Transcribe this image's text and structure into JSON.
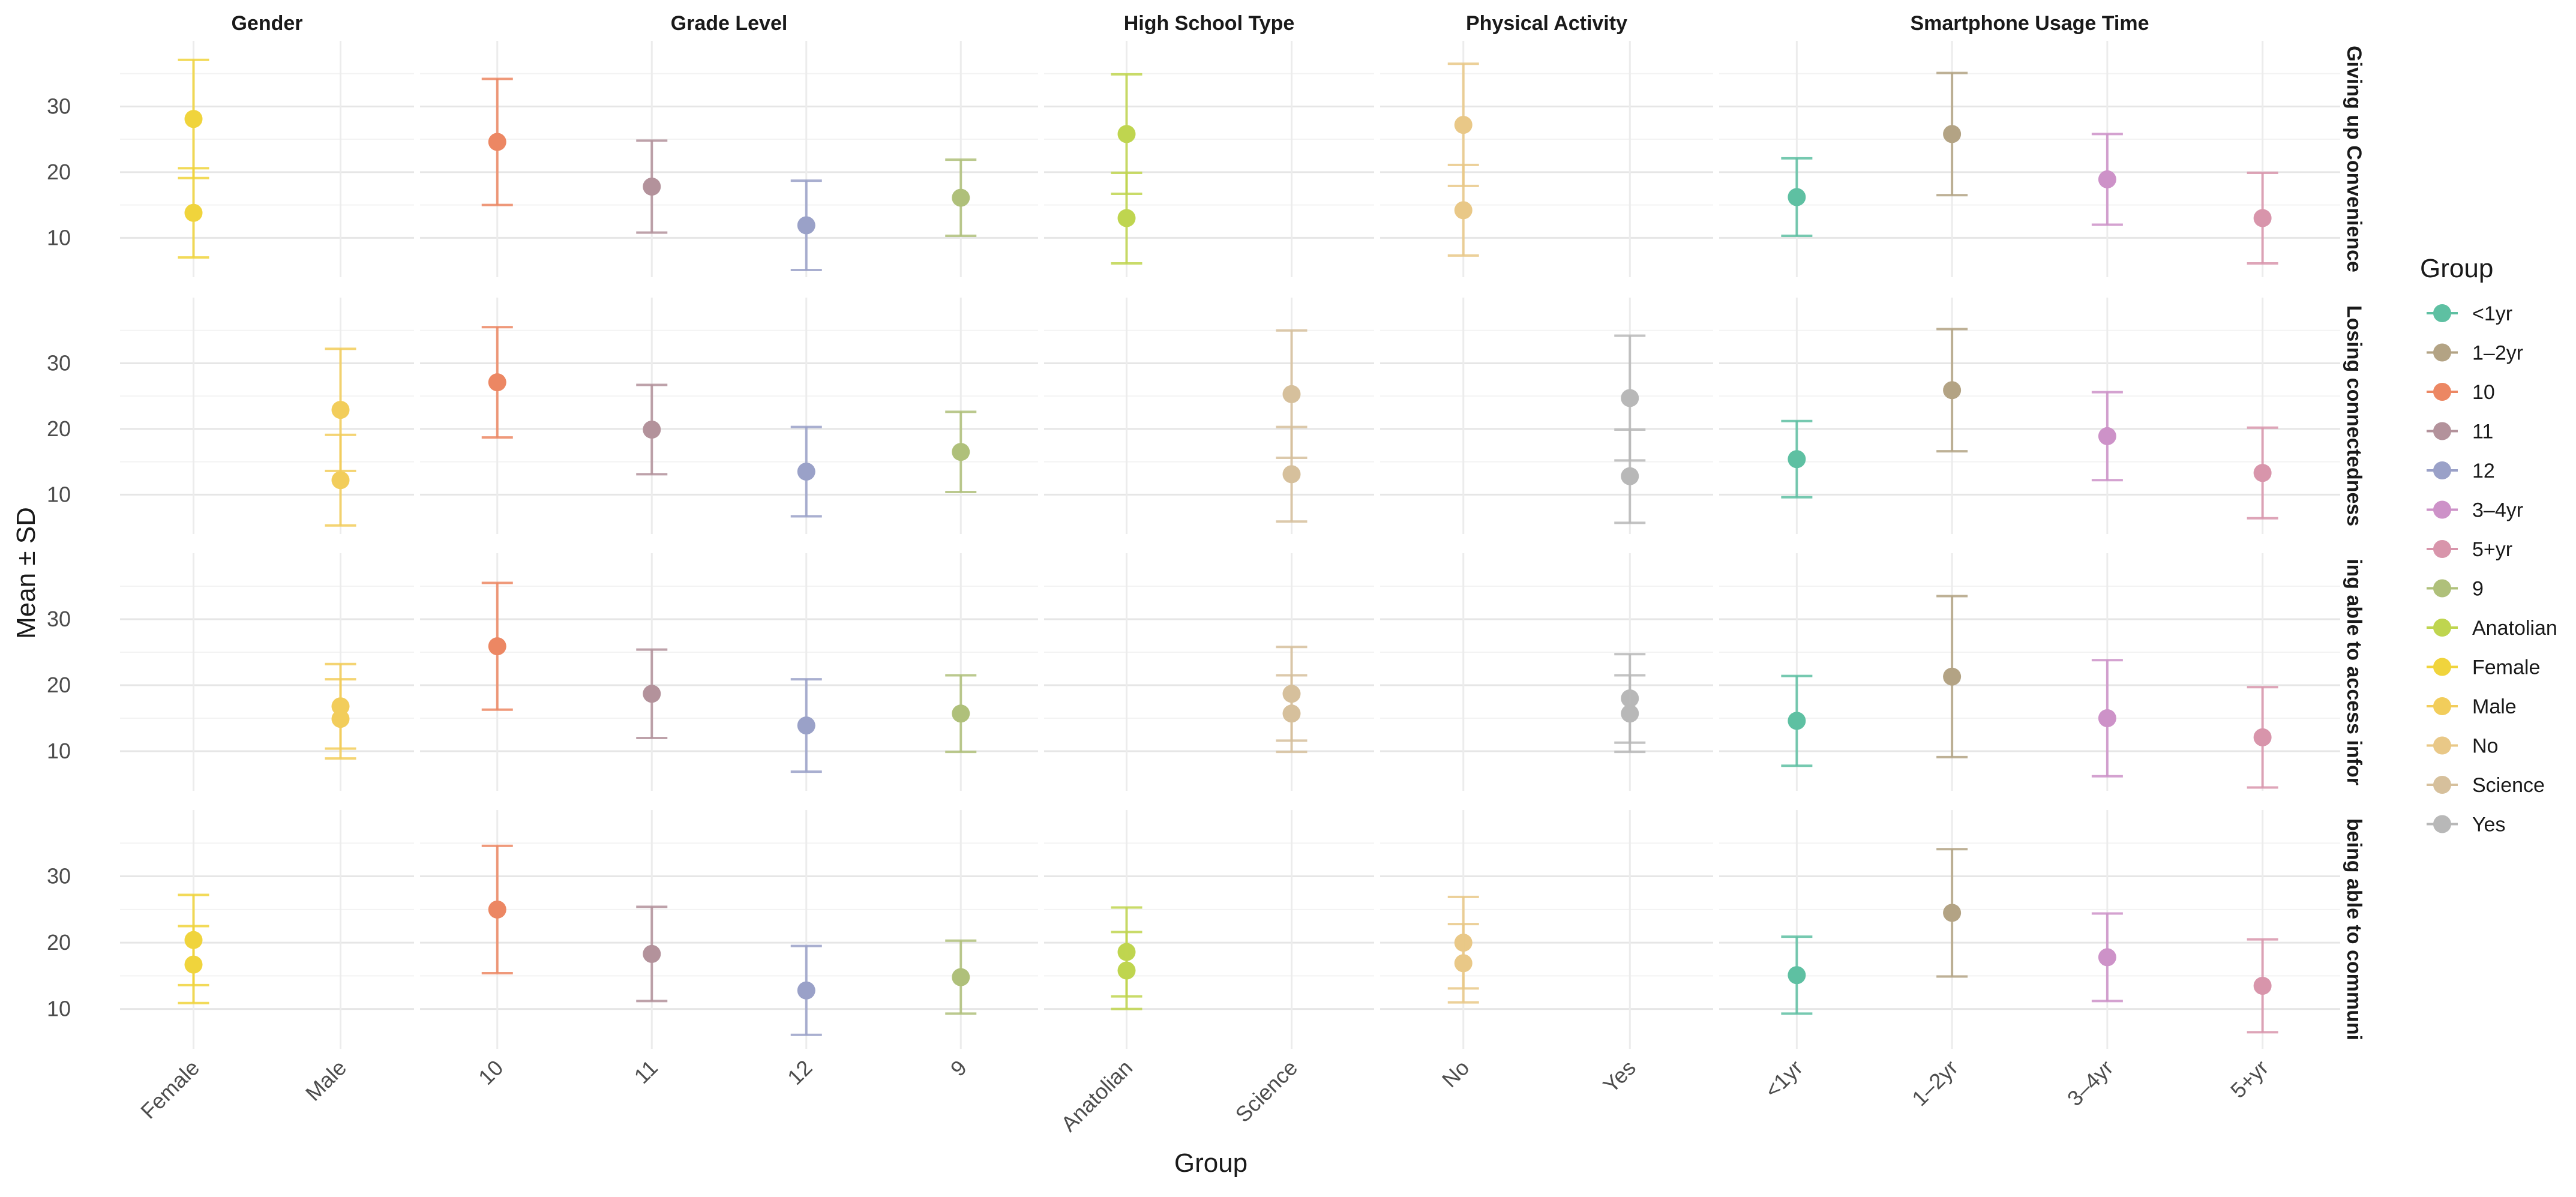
{
  "chart_data": {
    "type": "scatter",
    "subtype": "point-errorbar-facet-grid",
    "xlabel": "Group",
    "ylabel": "Mean ± SD",
    "ylim": [
      4,
      40
    ],
    "yticks": [
      10,
      20,
      30
    ],
    "grid": true,
    "legend": {
      "title": "Group",
      "placement": "right",
      "entries": [
        {
          "label": "<1yr",
          "color": "#5ec0a2"
        },
        {
          "label": "1–2yr",
          "color": "#b3a384"
        },
        {
          "label": "10",
          "color": "#ec8763"
        },
        {
          "label": "11",
          "color": "#b3929b"
        },
        {
          "label": "12",
          "color": "#9aa1c8"
        },
        {
          "label": "3–4yr",
          "color": "#cd92c8"
        },
        {
          "label": "5+yr",
          "color": "#d895ab"
        },
        {
          "label": "9",
          "color": "#afc07a"
        },
        {
          "label": "Anatolian",
          "color": "#bfd54f"
        },
        {
          "label": "Female",
          "color": "#f0d43c"
        },
        {
          "label": "Male",
          "color": "#f2cd5b"
        },
        {
          "label": "No",
          "color": "#e9c887"
        },
        {
          "label": "Science",
          "color": "#d6c09c"
        },
        {
          "label": "Yes",
          "color": "#b8b8b8"
        }
      ]
    },
    "column_facets": [
      {
        "title": "Gender",
        "categories": [
          "Female",
          "Male"
        ]
      },
      {
        "title": "Grade Level",
        "categories": [
          "10",
          "11",
          "12",
          "9"
        ]
      },
      {
        "title": "High School Type",
        "categories": [
          "Anatolian",
          "Science"
        ]
      },
      {
        "title": "Physical Activity",
        "categories": [
          "No",
          "Yes"
        ]
      },
      {
        "title": "Smartphone Usage Time",
        "categories": [
          "<1yr",
          "1–2yr",
          "3–4yr",
          "5+yr"
        ]
      }
    ],
    "row_facets": [
      {
        "label": "Giving up Convenience",
        "panels": [
          [
            {
              "category": "Female",
              "group": "Female",
              "mean": 28.1,
              "sd": 9.0
            },
            {
              "category": "Female",
              "group": "Female",
              "mean": 13.8,
              "sd": 6.8
            }
          ],
          [
            {
              "category": "10",
              "group": "10",
              "mean": 24.6,
              "sd": 9.6
            },
            {
              "category": "11",
              "group": "11",
              "mean": 17.8,
              "sd": 7.0
            },
            {
              "category": "12",
              "group": "12",
              "mean": 11.9,
              "sd": 6.8
            },
            {
              "category": "9",
              "group": "9",
              "mean": 16.1,
              "sd": 5.8
            }
          ],
          [
            {
              "category": "Anatolian",
              "group": "Anatolian",
              "mean": 25.8,
              "sd": 9.1
            },
            {
              "category": "Anatolian",
              "group": "Anatolian",
              "mean": 13.0,
              "sd": 6.9
            }
          ],
          [
            {
              "category": "No",
              "group": "No",
              "mean": 27.2,
              "sd": 9.3
            },
            {
              "category": "No",
              "group": "No",
              "mean": 14.2,
              "sd": 6.9
            }
          ],
          [
            {
              "category": "<1yr",
              "group": "<1yr",
              "mean": 16.2,
              "sd": 5.9
            },
            {
              "category": "1–2yr",
              "group": "1–2yr",
              "mean": 25.8,
              "sd": 9.3
            },
            {
              "category": "3–4yr",
              "group": "3–4yr",
              "mean": 18.9,
              "sd": 6.9
            },
            {
              "category": "5+yr",
              "group": "5+yr",
              "mean": 13.0,
              "sd": 6.9
            }
          ]
        ]
      },
      {
        "label": "Losing connectedness",
        "panels": [
          [
            {
              "category": "Male",
              "group": "Male",
              "mean": 22.9,
              "sd": 9.3
            },
            {
              "category": "Male",
              "group": "Male",
              "mean": 12.2,
              "sd": 6.9
            }
          ],
          [
            {
              "category": "10",
              "group": "10",
              "mean": 27.1,
              "sd": 8.4
            },
            {
              "category": "11",
              "group": "11",
              "mean": 19.9,
              "sd": 6.8
            },
            {
              "category": "12",
              "group": "12",
              "mean": 13.5,
              "sd": 6.8
            },
            {
              "category": "9",
              "group": "9",
              "mean": 16.5,
              "sd": 6.1
            }
          ],
          [
            {
              "category": "Science",
              "group": "Science",
              "mean": 25.3,
              "sd": 9.7
            },
            {
              "category": "Science",
              "group": "Science",
              "mean": 13.1,
              "sd": 7.2
            }
          ],
          [
            {
              "category": "Yes",
              "group": "Yes",
              "mean": 24.7,
              "sd": 9.5
            },
            {
              "category": "Yes",
              "group": "Yes",
              "mean": 12.8,
              "sd": 7.1
            }
          ],
          [
            {
              "category": "<1yr",
              "group": "<1yr",
              "mean": 15.4,
              "sd": 5.8
            },
            {
              "category": "1–2yr",
              "group": "1–2yr",
              "mean": 25.9,
              "sd": 9.3
            },
            {
              "category": "3–4yr",
              "group": "3–4yr",
              "mean": 18.9,
              "sd": 6.7
            },
            {
              "category": "5+yr",
              "group": "5+yr",
              "mean": 13.3,
              "sd": 6.9
            }
          ]
        ]
      },
      {
        "label": "ing able to access infor",
        "panels": [
          [
            {
              "category": "Male",
              "group": "Male",
              "mean": 16.8,
              "sd": 6.4
            },
            {
              "category": "Male",
              "group": "Male",
              "mean": 14.9,
              "sd": 6.0
            }
          ],
          [
            {
              "category": "10",
              "group": "10",
              "mean": 25.9,
              "sd": 9.6
            },
            {
              "category": "11",
              "group": "11",
              "mean": 18.7,
              "sd": 6.7
            },
            {
              "category": "12",
              "group": "12",
              "mean": 13.9,
              "sd": 7.0
            },
            {
              "category": "9",
              "group": "9",
              "mean": 15.7,
              "sd": 5.8
            }
          ],
          [
            {
              "category": "Science",
              "group": "Science",
              "mean": 18.7,
              "sd": 7.1
            },
            {
              "category": "Science",
              "group": "Science",
              "mean": 15.7,
              "sd": 5.8
            }
          ],
          [
            {
              "category": "Yes",
              "group": "Yes",
              "mean": 18.0,
              "sd": 6.7
            },
            {
              "category": "Yes",
              "group": "Yes",
              "mean": 15.7,
              "sd": 5.8
            }
          ],
          [
            {
              "category": "<1yr",
              "group": "<1yr",
              "mean": 14.6,
              "sd": 6.8
            },
            {
              "category": "1–2yr",
              "group": "1–2yr",
              "mean": 21.3,
              "sd": 12.2
            },
            {
              "category": "3–4yr",
              "group": "3–4yr",
              "mean": 15.0,
              "sd": 8.8
            },
            {
              "category": "5+yr",
              "group": "5+yr",
              "mean": 12.1,
              "sd": 7.6
            }
          ]
        ]
      },
      {
        "label": "being able to communi",
        "panels": [
          [
            {
              "category": "Female",
              "group": "Female",
              "mean": 20.4,
              "sd": 6.8
            },
            {
              "category": "Female",
              "group": "Female",
              "mean": 16.7,
              "sd": 5.8
            }
          ],
          [
            {
              "category": "10",
              "group": "10",
              "mean": 25.0,
              "sd": 9.6
            },
            {
              "category": "11",
              "group": "11",
              "mean": 18.3,
              "sd": 7.1
            },
            {
              "category": "12",
              "group": "12",
              "mean": 12.8,
              "sd": 6.7
            },
            {
              "category": "9",
              "group": "9",
              "mean": 14.8,
              "sd": 5.5
            }
          ],
          [
            {
              "category": "Anatolian",
              "group": "Anatolian",
              "mean": 18.6,
              "sd": 6.7
            },
            {
              "category": "Anatolian",
              "group": "Anatolian",
              "mean": 15.8,
              "sd": 5.8
            }
          ],
          [
            {
              "category": "No",
              "group": "No",
              "mean": 20.0,
              "sd": 6.9
            },
            {
              "category": "No",
              "group": "No",
              "mean": 16.9,
              "sd": 5.9
            }
          ],
          [
            {
              "category": "<1yr",
              "group": "<1yr",
              "mean": 15.1,
              "sd": 5.8
            },
            {
              "category": "1–2yr",
              "group": "1–2yr",
              "mean": 24.5,
              "sd": 9.6
            },
            {
              "category": "3–4yr",
              "group": "3–4yr",
              "mean": 17.8,
              "sd": 6.6
            },
            {
              "category": "5+yr",
              "group": "5+yr",
              "mean": 13.5,
              "sd": 7.0
            }
          ]
        ]
      }
    ]
  }
}
